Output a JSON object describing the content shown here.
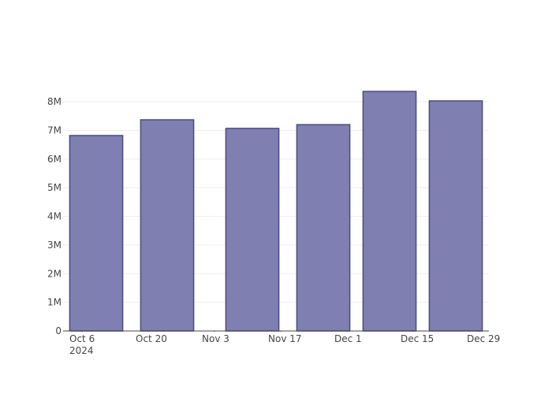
{
  "chart_data": {
    "type": "bar",
    "x": [
      "2024-10-09",
      "2024-10-24",
      "2024-11-11",
      "2024-11-26",
      "2024-12-10",
      "2024-12-24"
    ],
    "values": [
      6820000,
      7370000,
      7070000,
      7200000,
      8360000,
      8030000
    ],
    "color": "#7f7fb2",
    "line_color": "#4b4b82",
    "xlim": [
      "2024-10-02",
      "2024-12-31"
    ],
    "xticks": [
      {
        "value": "2024-10-06",
        "label": "Oct 6\n2024"
      },
      {
        "value": "2024-10-20",
        "label": "Oct 20"
      },
      {
        "value": "2024-11-03",
        "label": "Nov 3"
      },
      {
        "value": "2024-11-17",
        "label": "Nov 17"
      },
      {
        "value": "2024-12-01",
        "label": "Dec 1"
      },
      {
        "value": "2024-12-15",
        "label": "Dec 15"
      },
      {
        "value": "2024-12-29",
        "label": "Dec 29"
      }
    ],
    "ylim": [
      0,
      8800000
    ],
    "yticks": [
      0,
      {
        "value": 1000000,
        "label": "1M"
      },
      {
        "value": 2000000,
        "label": "2M"
      },
      {
        "value": 3000000,
        "label": "3M"
      },
      {
        "value": 4000000,
        "label": "4M"
      },
      {
        "value": 5000000,
        "label": "5M"
      },
      {
        "value": 6000000,
        "label": "6M"
      },
      {
        "value": 7000000,
        "label": "7M"
      },
      {
        "value": 8000000,
        "label": "8M"
      }
    ],
    "grid": true
  }
}
